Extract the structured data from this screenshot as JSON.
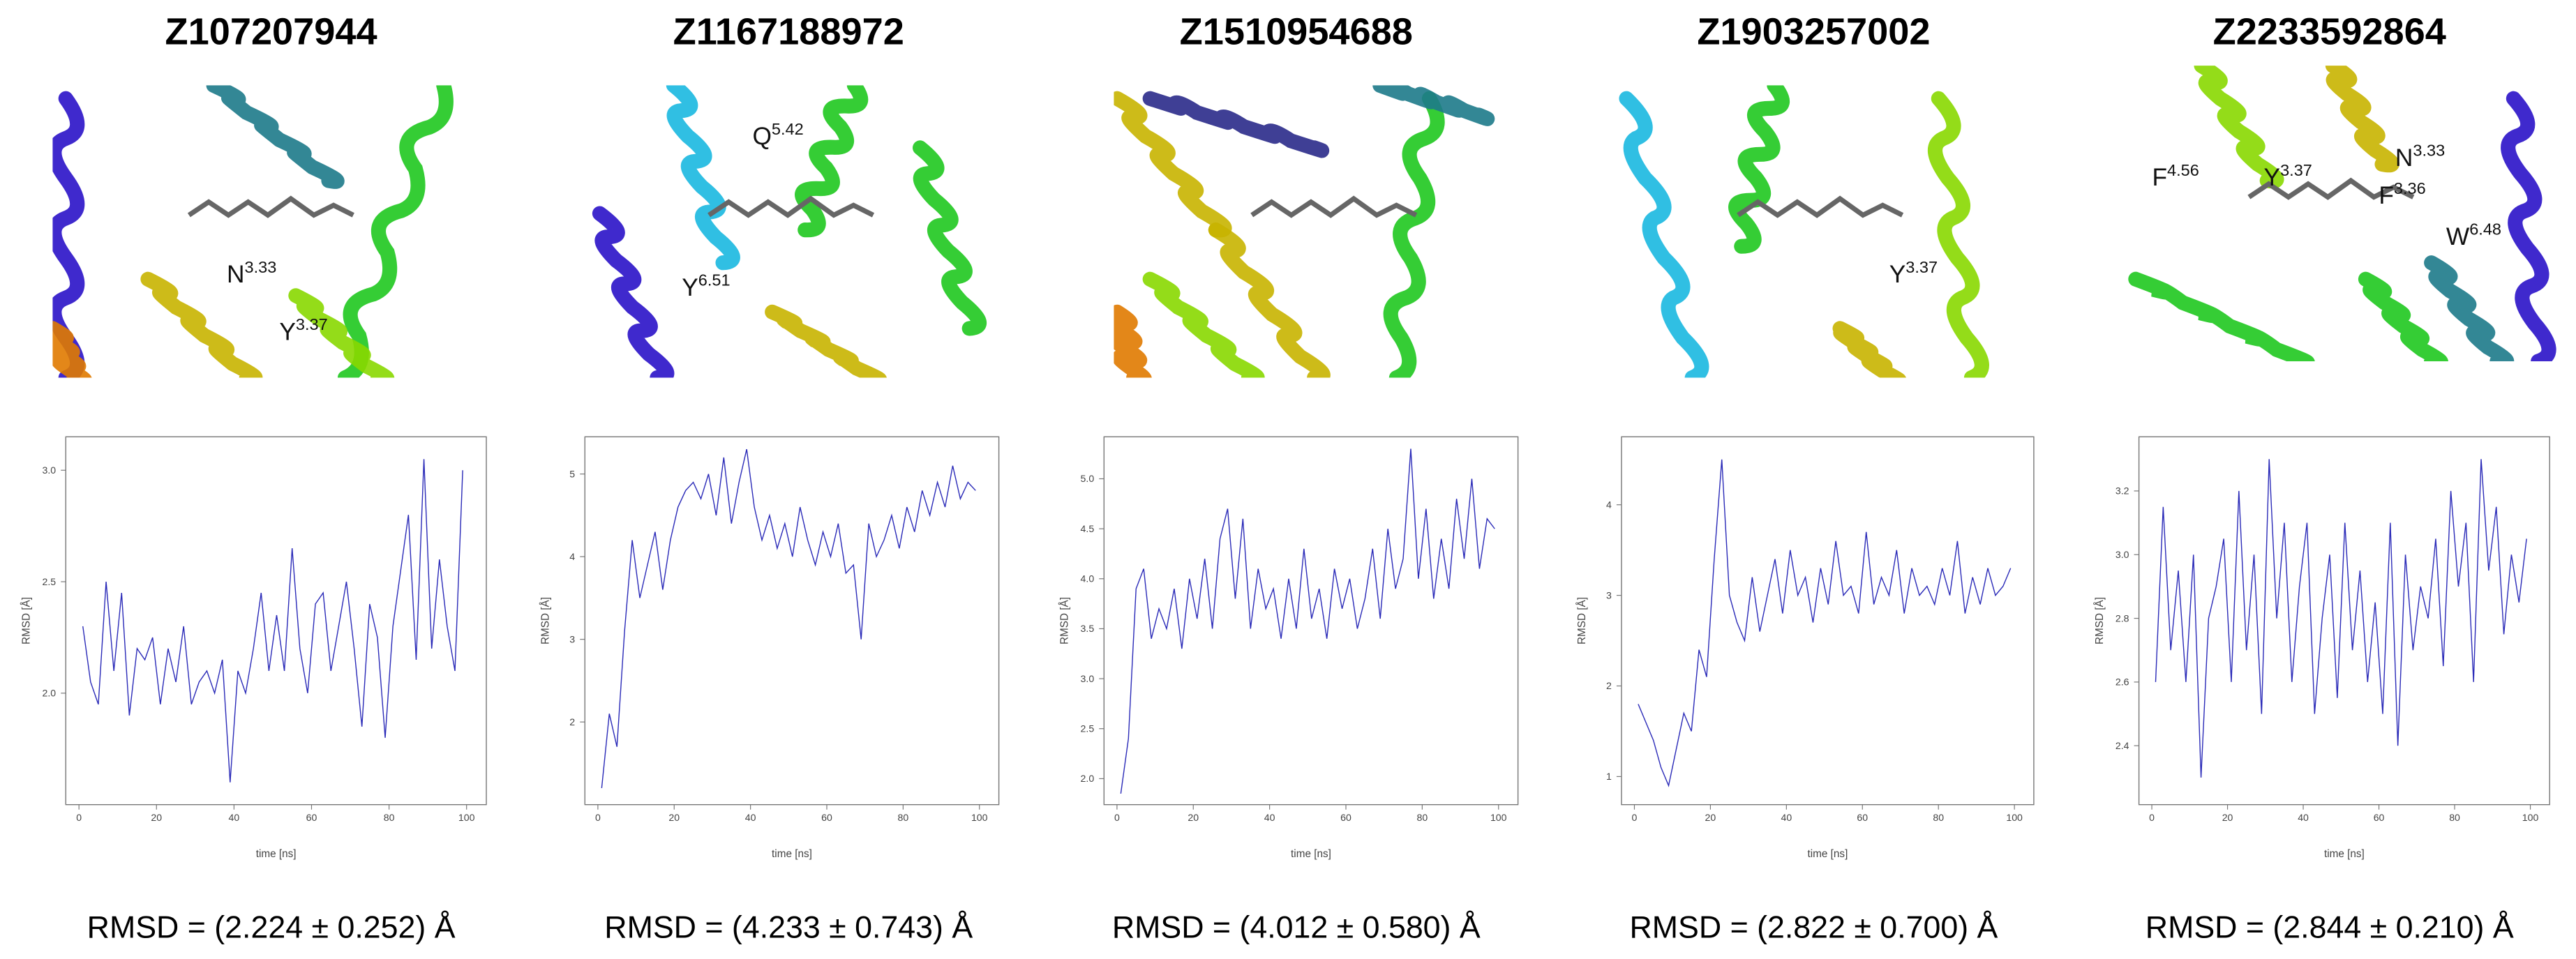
{
  "chart_data": [
    {
      "type": "line",
      "title": "Z107207944",
      "xlabel": "time [ns]",
      "ylabel": "RMSD [Å]",
      "caption": "RMSD = (2.224 ± 0.252) Å",
      "color": "#2b2bb8",
      "annotations": [
        {
          "text": "N",
          "sup": "3.33"
        },
        {
          "text": "Y",
          "sup": "3.37"
        }
      ],
      "x": [
        1,
        3,
        5,
        7,
        9,
        11,
        13,
        15,
        17,
        19,
        21,
        23,
        25,
        27,
        29,
        31,
        33,
        35,
        37,
        39,
        41,
        43,
        45,
        47,
        49,
        51,
        53,
        55,
        57,
        59,
        61,
        63,
        65,
        67,
        69,
        71,
        73,
        75,
        77,
        79,
        81,
        83,
        85,
        87,
        89,
        91,
        93,
        95,
        97,
        99
      ],
      "values": [
        2.3,
        2.05,
        1.95,
        2.5,
        2.1,
        2.45,
        1.9,
        2.2,
        2.15,
        2.25,
        1.95,
        2.2,
        2.05,
        2.3,
        1.95,
        2.05,
        2.1,
        2.0,
        2.15,
        1.6,
        2.1,
        2.0,
        2.2,
        2.45,
        2.1,
        2.35,
        2.1,
        2.65,
        2.2,
        2.0,
        2.4,
        2.45,
        2.1,
        2.3,
        2.5,
        2.2,
        1.85,
        2.4,
        2.25,
        1.8,
        2.3,
        2.55,
        2.8,
        2.15,
        3.05,
        2.2,
        2.6,
        2.3,
        2.1,
        3.0
      ],
      "xlim": [
        -3.4,
        105.1
      ],
      "ylim": [
        1.5,
        3.15
      ],
      "xticks": [
        0,
        20,
        40,
        60,
        80,
        100
      ],
      "yticks": [
        {
          "value": 2,
          "label": "2.0"
        },
        2.5,
        {
          "value": 3,
          "label": "3.0"
        }
      ]
    },
    {
      "type": "line",
      "title": "Z1167188972",
      "xlabel": "time [ns]",
      "ylabel": "RMSD [Å]",
      "caption": "RMSD = (4.233 ± 0.743) Å",
      "color": "#2b2bb8",
      "annotations": [
        {
          "text": "Q",
          "sup": "5.42"
        },
        {
          "text": "Y",
          "sup": "6.51"
        }
      ],
      "x": [
        1,
        3,
        5,
        7,
        9,
        11,
        13,
        15,
        17,
        19,
        21,
        23,
        25,
        27,
        29,
        31,
        33,
        35,
        37,
        39,
        41,
        43,
        45,
        47,
        49,
        51,
        53,
        55,
        57,
        59,
        61,
        63,
        65,
        67,
        69,
        71,
        73,
        75,
        77,
        79,
        81,
        83,
        85,
        87,
        89,
        91,
        93,
        95,
        97,
        99
      ],
      "values": [
        1.2,
        2.1,
        1.7,
        3.1,
        4.2,
        3.5,
        3.9,
        4.3,
        3.6,
        4.2,
        4.6,
        4.8,
        4.9,
        4.7,
        5.0,
        4.5,
        5.2,
        4.4,
        4.9,
        5.3,
        4.6,
        4.2,
        4.5,
        4.1,
        4.4,
        4.0,
        4.6,
        4.2,
        3.9,
        4.3,
        4.0,
        4.4,
        3.8,
        3.9,
        3.0,
        4.4,
        4.0,
        4.2,
        4.5,
        4.1,
        4.6,
        4.3,
        4.8,
        4.5,
        4.9,
        4.6,
        5.1,
        4.7,
        4.9,
        4.8
      ],
      "xlim": [
        -3.4,
        105.1
      ],
      "ylim": [
        1.0,
        5.45
      ],
      "xticks": [
        0,
        20,
        40,
        60,
        80,
        100
      ],
      "yticks": [
        2,
        3,
        4,
        5
      ]
    },
    {
      "type": "line",
      "title": "Z1510954688",
      "xlabel": "time [ns]",
      "ylabel": "RMSD [Å]",
      "caption": "RMSD = (4.012 ± 0.580) Å",
      "color": "#2b2bb8",
      "x": [
        1,
        3,
        5,
        7,
        9,
        11,
        13,
        15,
        17,
        19,
        21,
        23,
        25,
        27,
        29,
        31,
        33,
        35,
        37,
        39,
        41,
        43,
        45,
        47,
        49,
        51,
        53,
        55,
        57,
        59,
        61,
        63,
        65,
        67,
        69,
        71,
        73,
        75,
        77,
        79,
        81,
        83,
        85,
        87,
        89,
        91,
        93,
        95,
        97,
        99
      ],
      "values": [
        1.85,
        2.4,
        3.9,
        4.1,
        3.4,
        3.7,
        3.5,
        3.9,
        3.3,
        4.0,
        3.6,
        4.2,
        3.5,
        4.4,
        4.7,
        3.8,
        4.6,
        3.5,
        4.1,
        3.7,
        3.9,
        3.4,
        4.0,
        3.5,
        4.3,
        3.6,
        3.9,
        3.4,
        4.1,
        3.7,
        4.0,
        3.5,
        3.8,
        4.3,
        3.6,
        4.5,
        3.9,
        4.2,
        5.3,
        4.0,
        4.7,
        3.8,
        4.4,
        3.9,
        4.8,
        4.2,
        5.0,
        4.1,
        4.6,
        4.5
      ],
      "xlim": [
        -3.4,
        105.1
      ],
      "ylim": [
        1.74,
        5.42
      ],
      "xticks": [
        0,
        20,
        40,
        60,
        80,
        100
      ],
      "yticks": [
        {
          "value": 2,
          "label": "2.0"
        },
        2.5,
        {
          "value": 3,
          "label": "3.0"
        },
        3.5,
        {
          "value": 4,
          "label": "4.0"
        },
        4.5,
        {
          "value": 5,
          "label": "5.0"
        }
      ]
    },
    {
      "type": "line",
      "title": "Z1903257002",
      "xlabel": "time [ns]",
      "ylabel": "RMSD [Å]",
      "caption": "RMSD = (2.822 ± 0.700) Å",
      "color": "#2b2bb8",
      "annotations": [
        {
          "text": "Y",
          "sup": "3.37"
        }
      ],
      "x": [
        1,
        3,
        5,
        7,
        9,
        11,
        13,
        15,
        17,
        19,
        21,
        23,
        25,
        27,
        29,
        31,
        33,
        35,
        37,
        39,
        41,
        43,
        45,
        47,
        49,
        51,
        53,
        55,
        57,
        59,
        61,
        63,
        65,
        67,
        69,
        71,
        73,
        75,
        77,
        79,
        81,
        83,
        85,
        87,
        89,
        91,
        93,
        95,
        97,
        99
      ],
      "values": [
        1.8,
        1.6,
        1.4,
        1.1,
        0.9,
        1.3,
        1.7,
        1.5,
        2.4,
        2.1,
        3.4,
        4.5,
        3.0,
        2.7,
        2.5,
        3.2,
        2.6,
        3.0,
        3.4,
        2.8,
        3.5,
        3.0,
        3.2,
        2.7,
        3.3,
        2.9,
        3.6,
        3.0,
        3.1,
        2.8,
        3.7,
        2.9,
        3.2,
        3.0,
        3.5,
        2.8,
        3.3,
        3.0,
        3.1,
        2.9,
        3.3,
        3.0,
        3.6,
        2.8,
        3.2,
        2.9,
        3.3,
        3.0,
        3.1,
        3.3
      ],
      "xlim": [
        -3.4,
        105.1
      ],
      "ylim": [
        0.69,
        4.75
      ],
      "xticks": [
        0,
        20,
        40,
        60,
        80,
        100
      ],
      "yticks": [
        1,
        2,
        3,
        4
      ]
    },
    {
      "type": "line",
      "title": "Z2233592864",
      "xlabel": "time [ns]",
      "ylabel": "RMSD [Å]",
      "caption": "RMSD = (2.844 ± 0.210) Å",
      "color": "#2b2bb8",
      "annotations": [
        {
          "text": "F",
          "sup": "4.56"
        },
        {
          "text": "Y",
          "sup": "3.37"
        },
        {
          "text": "N",
          "sup": "3.33"
        },
        {
          "text": "F",
          "sup": "3.36"
        },
        {
          "text": "W",
          "sup": "6.48"
        }
      ],
      "x": [
        1,
        3,
        5,
        7,
        9,
        11,
        13,
        15,
        17,
        19,
        21,
        23,
        25,
        27,
        29,
        31,
        33,
        35,
        37,
        39,
        41,
        43,
        45,
        47,
        49,
        51,
        53,
        55,
        57,
        59,
        61,
        63,
        65,
        67,
        69,
        71,
        73,
        75,
        77,
        79,
        81,
        83,
        85,
        87,
        89,
        91,
        93,
        95,
        97,
        99
      ],
      "values": [
        2.6,
        3.15,
        2.7,
        2.95,
        2.6,
        3.0,
        2.3,
        2.8,
        2.9,
        3.05,
        2.6,
        3.2,
        2.7,
        3.0,
        2.5,
        3.3,
        2.8,
        3.1,
        2.6,
        2.9,
        3.1,
        2.5,
        2.8,
        3.0,
        2.55,
        3.1,
        2.7,
        2.95,
        2.6,
        2.85,
        2.5,
        3.1,
        2.4,
        3.0,
        2.7,
        2.9,
        2.8,
        3.05,
        2.65,
        3.2,
        2.9,
        3.1,
        2.6,
        3.3,
        2.95,
        3.15,
        2.75,
        3.0,
        2.85,
        3.05
      ],
      "xlim": [
        -3.4,
        105.1
      ],
      "ylim": [
        2.215,
        3.37
      ],
      "xticks": [
        0,
        20,
        40,
        60,
        80,
        100
      ],
      "yticks": [
        2.4,
        2.6,
        2.8,
        {
          "value": 3,
          "label": "3.0"
        },
        3.2
      ]
    }
  ]
}
